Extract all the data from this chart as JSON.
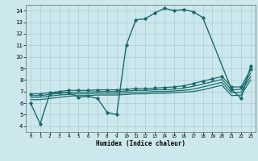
{
  "title": "",
  "xlabel": "Humidex (Indice chaleur)",
  "ylabel": "",
  "bg_color": "#cce8ed",
  "grid_color": "#aacdd4",
  "line_color": "#1a6b6b",
  "xlim": [
    -0.5,
    23.5
  ],
  "ylim": [
    3.5,
    14.5
  ],
  "xticks": [
    0,
    1,
    2,
    3,
    4,
    5,
    6,
    7,
    8,
    9,
    10,
    11,
    12,
    13,
    14,
    15,
    16,
    17,
    18,
    19,
    20,
    21,
    22,
    23
  ],
  "yticks": [
    4,
    5,
    6,
    7,
    8,
    9,
    10,
    11,
    12,
    13,
    14
  ],
  "series": [
    {
      "x": [
        0,
        1,
        2,
        3,
        4,
        5,
        6,
        7,
        8,
        9,
        10,
        11,
        12,
        13,
        14,
        15,
        16,
        17,
        18,
        21,
        22,
        23
      ],
      "y": [
        6.0,
        4.2,
        6.8,
        6.9,
        6.9,
        6.5,
        6.6,
        6.4,
        5.2,
        5.0,
        11.0,
        13.2,
        13.3,
        13.8,
        14.2,
        14.0,
        14.1,
        13.9,
        13.4,
        7.2,
        6.4,
        9.2
      ],
      "marker": "D",
      "markersize": 1.8,
      "linewidth": 1.0,
      "linestyle": "-"
    },
    {
      "x": [
        0,
        1,
        2,
        3,
        4,
        5,
        6,
        7,
        8,
        9,
        10,
        11,
        12,
        13,
        14,
        15,
        16,
        17,
        18,
        19,
        20,
        21,
        22,
        23
      ],
      "y": [
        6.8,
        6.8,
        6.9,
        7.0,
        7.1,
        7.1,
        7.1,
        7.15,
        7.15,
        7.15,
        7.2,
        7.25,
        7.25,
        7.3,
        7.35,
        7.4,
        7.5,
        7.7,
        7.9,
        8.1,
        8.3,
        7.4,
        7.4,
        8.9
      ],
      "marker": "D",
      "markersize": 1.8,
      "linewidth": 0.9,
      "linestyle": "-"
    },
    {
      "x": [
        0,
        1,
        2,
        3,
        4,
        5,
        6,
        7,
        8,
        9,
        10,
        11,
        12,
        13,
        14,
        15,
        16,
        17,
        18,
        19,
        20,
        21,
        22,
        23
      ],
      "y": [
        6.65,
        6.65,
        6.75,
        6.85,
        6.9,
        6.95,
        6.95,
        7.0,
        7.0,
        7.0,
        7.05,
        7.1,
        7.1,
        7.15,
        7.15,
        7.2,
        7.3,
        7.45,
        7.65,
        7.85,
        8.05,
        7.15,
        7.2,
        8.6
      ],
      "marker": null,
      "markersize": 0,
      "linewidth": 0.9,
      "linestyle": "-"
    },
    {
      "x": [
        0,
        1,
        2,
        3,
        4,
        5,
        6,
        7,
        8,
        9,
        10,
        11,
        12,
        13,
        14,
        15,
        16,
        17,
        18,
        19,
        20,
        21,
        22,
        23
      ],
      "y": [
        6.5,
        6.5,
        6.6,
        6.7,
        6.75,
        6.8,
        6.8,
        6.85,
        6.85,
        6.85,
        6.9,
        6.95,
        6.95,
        7.0,
        7.0,
        7.05,
        7.1,
        7.2,
        7.4,
        7.6,
        7.8,
        6.9,
        6.95,
        8.3
      ],
      "marker": null,
      "markersize": 0,
      "linewidth": 0.9,
      "linestyle": "-"
    },
    {
      "x": [
        0,
        1,
        2,
        3,
        4,
        5,
        6,
        7,
        8,
        9,
        10,
        11,
        12,
        13,
        14,
        15,
        16,
        17,
        18,
        19,
        20,
        21,
        22,
        23
      ],
      "y": [
        6.3,
        6.3,
        6.4,
        6.5,
        6.6,
        6.65,
        6.65,
        6.7,
        6.7,
        6.7,
        6.75,
        6.8,
        6.8,
        6.85,
        6.85,
        6.9,
        6.95,
        7.0,
        7.15,
        7.35,
        7.55,
        6.65,
        6.7,
        8.0
      ],
      "marker": null,
      "markersize": 0,
      "linewidth": 0.9,
      "linestyle": "-"
    }
  ]
}
